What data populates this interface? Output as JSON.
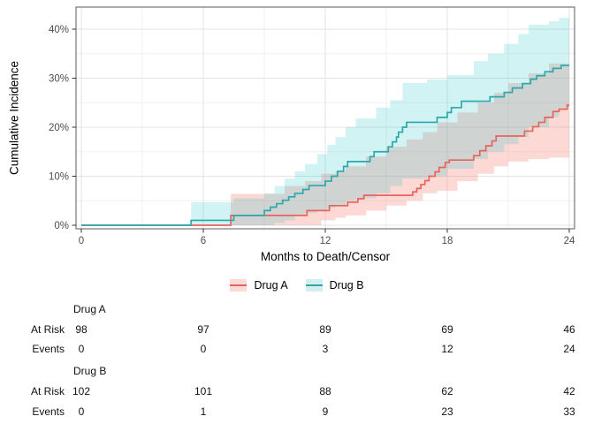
{
  "chart_data": {
    "type": "line",
    "subtype": "step-cumulative-incidence-with-confidence-bands",
    "title": "",
    "xlabel": "Months to Death/Censor",
    "ylabel": "Cumulative Incidence",
    "xlim": [
      0,
      24
    ],
    "ylim_pct": [
      0,
      42.5
    ],
    "x_ticks": [
      0,
      6,
      12,
      18,
      24
    ],
    "x_minor_ticks": [
      3,
      9,
      15,
      21
    ],
    "y_ticks_pct": [
      0,
      10,
      20,
      30,
      40
    ],
    "y_tick_labels": [
      "0%",
      "10%",
      "20%",
      "30%",
      "40%"
    ],
    "y_minor_ticks_pct": [
      5,
      15,
      25,
      35
    ],
    "grid": true,
    "legend_position": "bottom",
    "colors": {
      "panel_border": "#595959",
      "grid_major": "#e3e3e3",
      "grid_minor": "#f0f0f0",
      "tick_mark": "#333333",
      "tick_label": "#4d4d4d"
    },
    "series": [
      {
        "name": "Drug A",
        "line_color": "#e8635d",
        "band_fill": "#f8766d",
        "band_opacity": 0.28,
        "band_fill_light": "#fbdad7",
        "steps_pct": [
          [
            0,
            0
          ],
          [
            7.35,
            2
          ],
          [
            11.1,
            3
          ],
          [
            12.2,
            4
          ],
          [
            13.1,
            4.7
          ],
          [
            13.6,
            5.4
          ],
          [
            13.9,
            6.1
          ],
          [
            16.3,
            6.8
          ],
          [
            16.5,
            7.5
          ],
          [
            16.7,
            8.3
          ],
          [
            16.9,
            9.1
          ],
          [
            17.1,
            10
          ],
          [
            17.4,
            10.9
          ],
          [
            17.6,
            11.8
          ],
          [
            17.9,
            12.8
          ],
          [
            18.1,
            13.3
          ],
          [
            19.3,
            14.2
          ],
          [
            19.6,
            15.2
          ],
          [
            19.9,
            16.2
          ],
          [
            20.2,
            17.2
          ],
          [
            20.4,
            18.2
          ],
          [
            21.8,
            19.2
          ],
          [
            22.2,
            20.1
          ],
          [
            22.5,
            21
          ],
          [
            22.8,
            22
          ],
          [
            23.2,
            23.2
          ],
          [
            23.5,
            23.7
          ],
          [
            23.9,
            24.5
          ]
        ],
        "band_pct": [
          [
            7.35,
            0,
            6.4
          ],
          [
            9,
            0,
            6.4
          ],
          [
            10,
            0,
            8
          ],
          [
            11,
            0,
            9
          ],
          [
            11.8,
            1,
            10.5
          ],
          [
            12.5,
            1.5,
            11
          ],
          [
            13,
            2,
            12
          ],
          [
            14,
            3,
            14
          ],
          [
            15,
            4,
            16
          ],
          [
            16,
            5,
            17.5
          ],
          [
            16.8,
            6.5,
            19
          ],
          [
            17.5,
            7,
            21
          ],
          [
            18.5,
            9,
            23
          ],
          [
            19.5,
            10.5,
            25
          ],
          [
            20.3,
            12,
            27
          ],
          [
            21,
            13,
            29
          ],
          [
            22,
            13.5,
            31
          ],
          [
            23,
            13.8,
            33
          ]
        ]
      },
      {
        "name": "Drug B",
        "line_color": "#2ea7ab",
        "band_fill": "#00bfc4",
        "band_opacity": 0.18,
        "band_fill_light": "#d4eef0",
        "steps_pct": [
          [
            0,
            0
          ],
          [
            5.4,
            1
          ],
          [
            7.5,
            2
          ],
          [
            9,
            3
          ],
          [
            9.3,
            3.7
          ],
          [
            9.6,
            4.4
          ],
          [
            9.9,
            5.1
          ],
          [
            10.2,
            5.8
          ],
          [
            10.5,
            6.5
          ],
          [
            10.9,
            7.3
          ],
          [
            11.2,
            8.1
          ],
          [
            12,
            9
          ],
          [
            12.3,
            10
          ],
          [
            12.6,
            11
          ],
          [
            12.9,
            12
          ],
          [
            13.1,
            13
          ],
          [
            14.2,
            14
          ],
          [
            14.4,
            15
          ],
          [
            15.1,
            16
          ],
          [
            15.3,
            17
          ],
          [
            15.5,
            18
          ],
          [
            15.6,
            19
          ],
          [
            15.8,
            20
          ],
          [
            16,
            21
          ],
          [
            17.5,
            22
          ],
          [
            18,
            23
          ],
          [
            18.2,
            24
          ],
          [
            18.7,
            25.3
          ],
          [
            20.1,
            26.2
          ],
          [
            20.8,
            27.1
          ],
          [
            21.2,
            28
          ],
          [
            21.7,
            28.9
          ],
          [
            22.1,
            29.8
          ],
          [
            22.4,
            30.5
          ],
          [
            22.8,
            31.3
          ],
          [
            23.2,
            32
          ],
          [
            23.6,
            32.6
          ]
        ],
        "band_pct": [
          [
            5.4,
            0,
            4.7
          ],
          [
            7.5,
            0,
            5.5
          ],
          [
            9,
            0,
            6.5
          ],
          [
            9.5,
            0.5,
            8
          ],
          [
            10,
            1,
            9.5
          ],
          [
            10.5,
            2,
            11
          ],
          [
            11,
            2.5,
            12.5
          ],
          [
            11.6,
            3,
            14.5
          ],
          [
            12.1,
            3.5,
            16.4
          ],
          [
            12.5,
            4,
            18
          ],
          [
            13,
            5,
            20
          ],
          [
            13.5,
            5.5,
            21.8
          ],
          [
            14.5,
            6.5,
            24
          ],
          [
            15.2,
            8,
            25.5
          ],
          [
            15.8,
            9.5,
            29
          ],
          [
            17,
            10,
            29.7
          ],
          [
            18,
            11.5,
            30.6
          ],
          [
            19.3,
            13.5,
            33.5
          ],
          [
            20,
            15,
            35
          ],
          [
            20.8,
            16.5,
            37
          ],
          [
            21.5,
            18,
            39
          ],
          [
            22,
            20,
            40.9
          ],
          [
            23,
            22,
            41.6
          ],
          [
            23.5,
            24,
            42.3
          ]
        ]
      }
    ],
    "risk_table": {
      "times": [
        0,
        6,
        12,
        18,
        24
      ],
      "row_labels": [
        "At Risk",
        "Events"
      ],
      "groups": [
        {
          "name": "Drug A",
          "at_risk": [
            98,
            97,
            89,
            69,
            46
          ],
          "events": [
            0,
            0,
            3,
            12,
            24
          ]
        },
        {
          "name": "Drug B",
          "at_risk": [
            102,
            101,
            88,
            62,
            42
          ],
          "events": [
            0,
            1,
            9,
            23,
            33
          ]
        }
      ]
    }
  },
  "legend": {
    "items": [
      {
        "label": "Drug A"
      },
      {
        "label": "Drug B"
      }
    ]
  }
}
